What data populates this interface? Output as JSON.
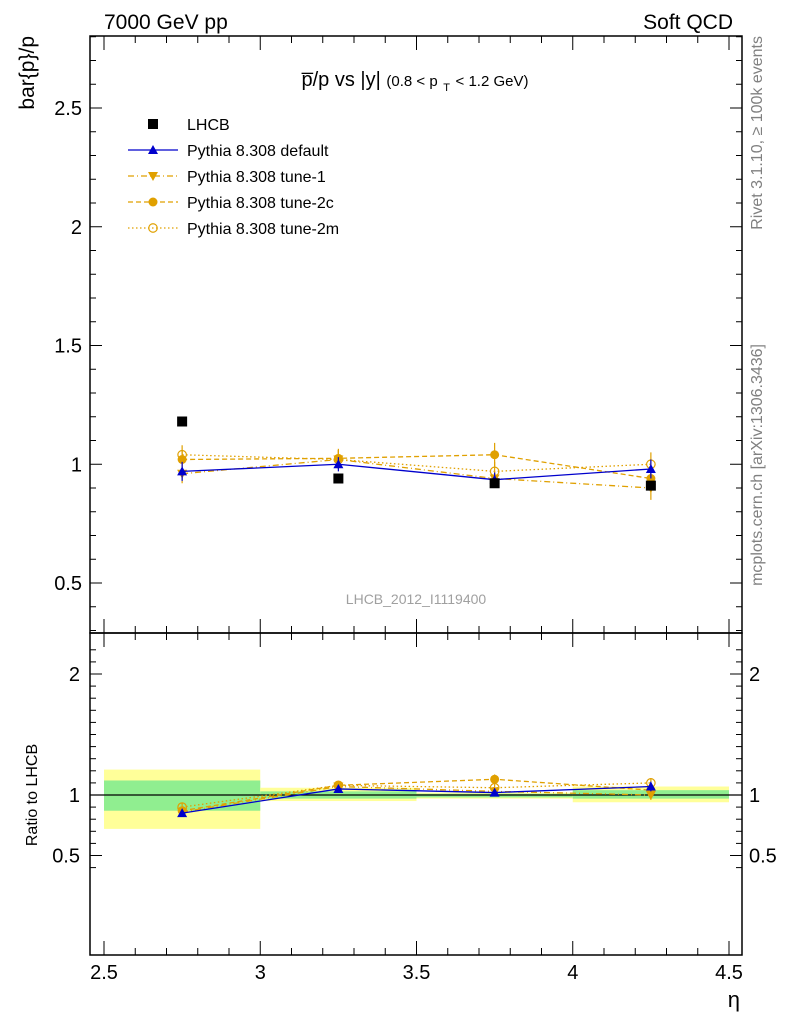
{
  "header": {
    "left": "7000 GeV pp",
    "right": "Soft QCD"
  },
  "side": {
    "rivet": "Rivet 3.1.10, ≥ 100k events",
    "mcplots": "mcplots.cern.ch [arXiv:1306.3436]"
  },
  "watermark": "LHCB_2012_I1119400",
  "title": {
    "main": "p̅/p vs |y|",
    "cut_open": "(0.8 < p",
    "cut_sub": "T",
    "cut_close": " < 1.2 GeV)"
  },
  "colors": {
    "data": "#000000",
    "default": "#0000cc",
    "tunes": "#e0a000",
    "band_inner": "#90ee90",
    "band_outer": "#ffff99"
  },
  "chart_data": [
    {
      "type": "scatter",
      "panel": "main",
      "ylabel": "bar{p}/p",
      "xlim": [
        2.5,
        4.5
      ],
      "ylim": [
        0.3,
        2.8
      ],
      "yticks": [
        0.5,
        1,
        1.5,
        2,
        2.5
      ],
      "x": [
        2.75,
        3.25,
        3.75,
        4.25
      ],
      "legend_position": "top-left",
      "series": [
        {
          "name": "LHCB",
          "marker": "square-filled",
          "values": [
            1.18,
            0.94,
            0.92,
            0.91
          ],
          "errors": [
            0.0,
            0.0,
            0.0,
            0.0
          ]
        },
        {
          "name": "Pythia 8.308 default",
          "marker": "triangle-up-filled",
          "line": "solid",
          "values": [
            0.97,
            1.0,
            0.935,
            0.98
          ],
          "errors": [
            0.04,
            0.03,
            0.03,
            0.04
          ]
        },
        {
          "name": "Pythia 8.308 tune-1",
          "marker": "triangle-down-filled",
          "line": "dashdot",
          "values": [
            0.96,
            1.02,
            0.94,
            0.9
          ],
          "errors": [
            0.04,
            0.04,
            0.03,
            0.05
          ]
        },
        {
          "name": "Pythia 8.308 tune-2c",
          "marker": "circle-filled",
          "line": "dashed",
          "values": [
            1.02,
            1.025,
            1.04,
            0.94
          ],
          "errors": [
            0.04,
            0.04,
            0.05,
            0.05
          ]
        },
        {
          "name": "Pythia 8.308 tune-2m",
          "marker": "circle-open",
          "line": "dotted",
          "values": [
            1.04,
            1.02,
            0.97,
            1.0
          ],
          "errors": [
            0.04,
            0.04,
            0.04,
            0.05
          ]
        }
      ]
    },
    {
      "type": "scatter",
      "panel": "ratio",
      "ylabel": "Ratio to LHCB",
      "xlabel": "η",
      "xlim": [
        2.5,
        4.5
      ],
      "ylim": [
        0.35,
        2.25
      ],
      "yticks": [
        0.5,
        1,
        2
      ],
      "xticks": [
        2.5,
        3,
        3.5,
        4,
        4.5
      ],
      "x": [
        2.75,
        3.25,
        3.75,
        4.25
      ],
      "bands": [
        {
          "xmin": 2.5,
          "xmax": 3.0,
          "inner": [
            0.87,
            1.12
          ],
          "outer": [
            0.72,
            1.21
          ]
        },
        {
          "xmin": 3.0,
          "xmax": 3.5,
          "inner": [
            0.97,
            1.03
          ],
          "outer": [
            0.95,
            1.06
          ]
        },
        {
          "xmin": 3.5,
          "xmax": 4.0,
          "inner": [
            0.98,
            1.01
          ],
          "outer": [
            0.97,
            1.02
          ]
        },
        {
          "xmin": 4.0,
          "xmax": 4.5,
          "inner": [
            0.97,
            1.04
          ],
          "outer": [
            0.94,
            1.07
          ]
        }
      ],
      "series": [
        {
          "name": "Pythia 8.308 default",
          "values": [
            0.85,
            1.05,
            1.02,
            1.07
          ],
          "errors": [
            0.02,
            0.03,
            0.03,
            0.04
          ]
        },
        {
          "name": "Pythia 8.308 tune-1",
          "values": [
            0.86,
            1.07,
            1.03,
            1.0
          ],
          "errors": [
            0.03,
            0.03,
            0.03,
            0.04
          ]
        },
        {
          "name": "Pythia 8.308 tune-2c",
          "values": [
            0.87,
            1.08,
            1.13,
            1.04
          ],
          "errors": [
            0.03,
            0.03,
            0.04,
            0.05
          ]
        },
        {
          "name": "Pythia 8.308 tune-2m",
          "values": [
            0.9,
            1.08,
            1.06,
            1.1
          ],
          "errors": [
            0.03,
            0.03,
            0.03,
            0.04
          ]
        }
      ]
    }
  ]
}
